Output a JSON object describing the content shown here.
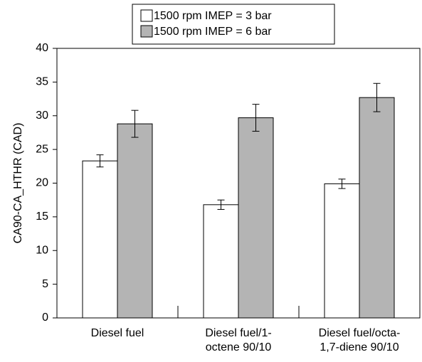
{
  "chart_data": {
    "type": "bar",
    "ylabel": "CA90-CA_HTHR (CAD)",
    "categories": [
      [
        "Diesel fuel"
      ],
      [
        "Diesel fuel/1-",
        "octene 90/10"
      ],
      [
        "Diesel fuel/octa-",
        "1,7-diene 90/10"
      ]
    ],
    "series": [
      {
        "name": "1500 rpm IMEP = 3 bar",
        "color": "#ffffff",
        "values": [
          23.3,
          16.8,
          19.9
        ],
        "errors": [
          0.9,
          0.7,
          0.7
        ]
      },
      {
        "name": "1500 rpm IMEP = 6 bar",
        "color": "#b4b4b4",
        "values": [
          28.8,
          29.7,
          32.7
        ],
        "errors": [
          2.0,
          2.0,
          2.1
        ]
      }
    ],
    "ylim": [
      0,
      40
    ],
    "yticks": [
      0,
      5,
      10,
      15,
      20,
      25,
      30,
      35,
      40
    ],
    "grid": false,
    "legend": "top"
  }
}
